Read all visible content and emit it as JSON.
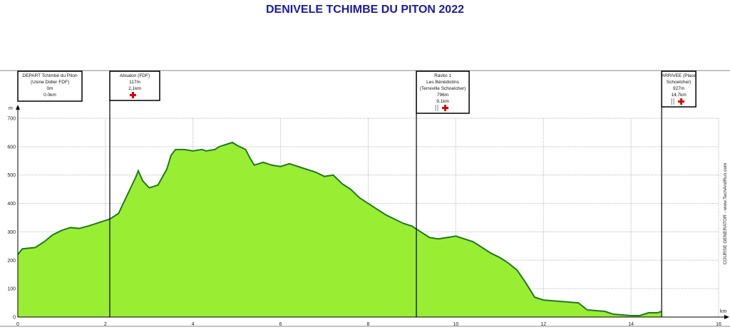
{
  "chart_data": {
    "type": "area",
    "title": "DENIVELE TCHIMBE DU PITON 2022",
    "xlabel": "km",
    "ylabel": "m",
    "xlim": [
      0,
      16
    ],
    "ylim": [
      0,
      700
    ],
    "xticks": [
      0,
      2,
      4,
      6,
      8,
      10,
      12,
      14,
      16
    ],
    "yticks": [
      0,
      100,
      200,
      300,
      400,
      500,
      600,
      700
    ],
    "grid": true,
    "colors": {
      "fill": "#99ee33",
      "line": "#1f7a1f",
      "title": "#1a1aa8"
    },
    "watermark": "COURSE GENERATOR - www.TechAndRun.com",
    "x": [
      0,
      0.1,
      0.4,
      0.6,
      0.8,
      1.0,
      1.2,
      1.4,
      1.6,
      1.8,
      2.0,
      2.1,
      2.2,
      2.3,
      2.5,
      2.7,
      2.75,
      2.85,
      3.0,
      3.2,
      3.4,
      3.5,
      3.6,
      3.8,
      4.0,
      4.2,
      4.3,
      4.5,
      4.6,
      4.8,
      4.9,
      5.0,
      5.2,
      5.3,
      5.4,
      5.6,
      5.8,
      6.0,
      6.2,
      6.4,
      6.6,
      6.8,
      7.0,
      7.2,
      7.4,
      7.6,
      7.8,
      8.0,
      8.2,
      8.4,
      8.6,
      8.8,
      9.0,
      9.1,
      9.2,
      9.4,
      9.6,
      9.8,
      10.0,
      10.2,
      10.4,
      10.6,
      10.8,
      11.0,
      11.2,
      11.4,
      11.6,
      11.8,
      12.0,
      12.4,
      12.8,
      13.0,
      13.4,
      13.6,
      14.0,
      14.2,
      14.4,
      14.6,
      14.7
    ],
    "y": [
      220,
      240,
      245,
      265,
      290,
      305,
      315,
      312,
      320,
      330,
      340,
      345,
      355,
      365,
      430,
      495,
      515,
      480,
      455,
      465,
      520,
      570,
      590,
      590,
      585,
      590,
      585,
      590,
      600,
      610,
      615,
      605,
      590,
      560,
      535,
      545,
      535,
      530,
      540,
      530,
      520,
      510,
      495,
      500,
      470,
      450,
      420,
      400,
      380,
      360,
      345,
      330,
      320,
      310,
      300,
      280,
      275,
      280,
      285,
      275,
      265,
      245,
      225,
      210,
      190,
      165,
      120,
      70,
      60,
      55,
      50,
      25,
      20,
      10,
      5,
      5,
      15,
      15,
      20
    ],
    "markers": [
      {
        "km": 2.1,
        "lines": [
          "Absalon (FDF)",
          "117m",
          "2,1km"
        ],
        "icons": [
          "first-aid-icon"
        ]
      },
      {
        "km": 9.1,
        "lines": [
          "Ravito 1",
          "Les Bénédictins",
          "(Terreville Schoelcher)",
          "796m",
          "9,1km"
        ],
        "icons": [
          "food-icon",
          "first-aid-icon"
        ]
      },
      {
        "km": 14.7,
        "lines": [
          "ARRIVEE (Place",
          "Schoelcher)",
          "927m",
          "14,7km"
        ],
        "icons": [
          "food-icon",
          "first-aid-icon"
        ]
      }
    ],
    "start": {
      "lines": [
        "DEPART Tchimbé du Piton",
        "(Usine Didier FDF)",
        "0m",
        "0.0km"
      ]
    }
  }
}
